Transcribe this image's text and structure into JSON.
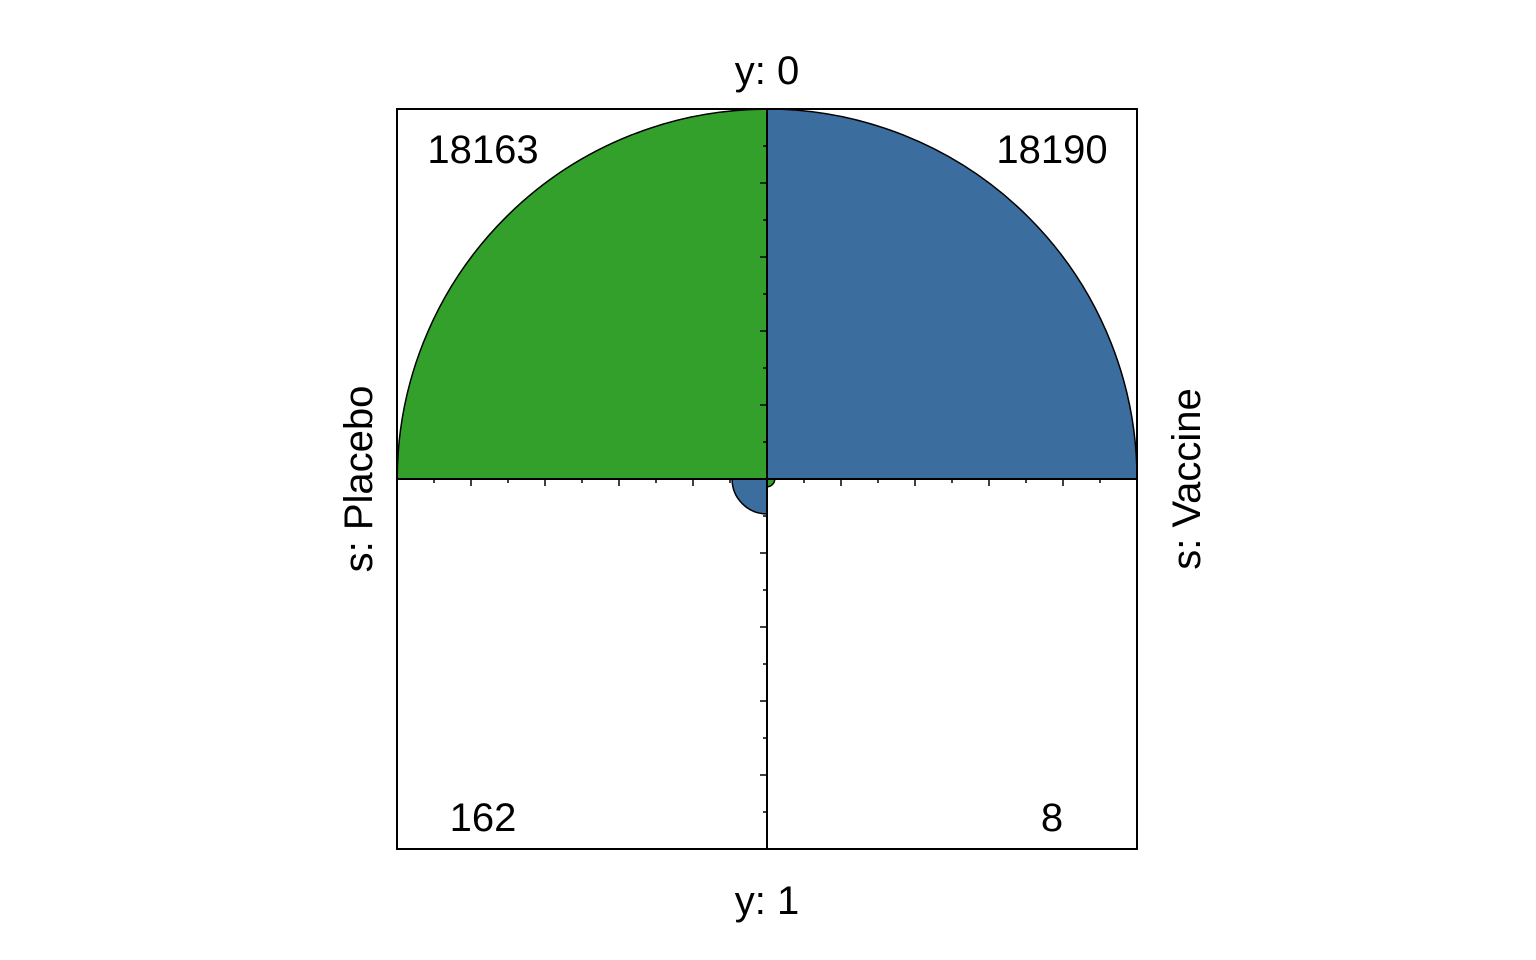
{
  "chart_data": {
    "type": "fourfold",
    "title": "",
    "row_variable": "y",
    "col_variable": "s",
    "top_label": "y: 0",
    "bottom_label": "y: 1",
    "left_label": "s: Placebo",
    "right_label": "s: Vaccine",
    "cells": [
      {
        "name": "placebo-y0",
        "s": "Placebo",
        "y": "0",
        "value": 18163,
        "label": "18163",
        "color": "#33a02c"
      },
      {
        "name": "vaccine-y0",
        "s": "Vaccine",
        "y": "0",
        "value": 18190,
        "label": "18190",
        "color": "#3b6e9e"
      },
      {
        "name": "placebo-y1",
        "s": "Placebo",
        "y": "1",
        "value": 162,
        "label": "162",
        "color": "#3b6e9e"
      },
      {
        "name": "vaccine-y1",
        "s": "Vaccine",
        "y": "1",
        "value": 8,
        "label": "8",
        "color": "#33a02c"
      }
    ]
  }
}
